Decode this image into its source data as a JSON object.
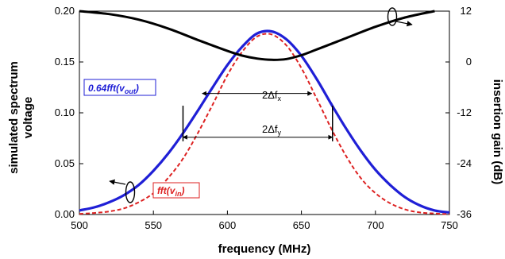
{
  "chart_data": {
    "type": "line",
    "xlabel": "frequency (MHz)",
    "ylabel_left": [
      "simulated spectrum",
      "voltage"
    ],
    "ylabel_right": "insertion gain (dB)",
    "xlim": [
      500,
      750
    ],
    "ylim_left": [
      0,
      0.2
    ],
    "ylim_right": [
      -36,
      12
    ],
    "x_ticks": [
      "500",
      "550",
      "600",
      "650",
      "700",
      "750"
    ],
    "y_left_ticks": [
      "0.00",
      "0.05",
      "0.10",
      "0.15",
      "0.20"
    ],
    "y_right_ticks": [
      "-36",
      "-24",
      "-12",
      "0",
      "12"
    ],
    "grid": false,
    "series": [
      {
        "name": "0.64fft(v_out)",
        "axis": "left",
        "color": "#1f1fd6",
        "style": "solid",
        "x": [
          500,
          510,
          520,
          530,
          540,
          550,
          560,
          570,
          580,
          590,
          600,
          610,
          620,
          630,
          640,
          650,
          660,
          670,
          680,
          690,
          700,
          710,
          720,
          730,
          740,
          750
        ],
        "y": [
          0.004,
          0.007,
          0.012,
          0.019,
          0.029,
          0.043,
          0.06,
          0.08,
          0.102,
          0.125,
          0.147,
          0.165,
          0.178,
          0.18,
          0.172,
          0.156,
          0.134,
          0.109,
          0.085,
          0.063,
          0.044,
          0.029,
          0.017,
          0.009,
          0.004,
          0.002
        ]
      },
      {
        "name": "fft(v_in)",
        "axis": "left",
        "color": "#dd2222",
        "style": "dashed",
        "x": [
          500,
          510,
          520,
          530,
          540,
          550,
          560,
          570,
          580,
          590,
          600,
          610,
          620,
          630,
          640,
          650,
          660,
          670,
          680,
          690,
          700,
          710,
          720,
          730,
          740,
          750
        ],
        "y": [
          0.0006,
          0.0015,
          0.003,
          0.006,
          0.012,
          0.021,
          0.036,
          0.055,
          0.08,
          0.108,
          0.137,
          0.16,
          0.175,
          0.177,
          0.166,
          0.144,
          0.115,
          0.085,
          0.058,
          0.036,
          0.021,
          0.011,
          0.005,
          0.002,
          0.001,
          0.0003
        ]
      },
      {
        "name": "insertion gain",
        "axis": "right",
        "color": "#000000",
        "style": "solid",
        "x": [
          500,
          520,
          540,
          560,
          580,
          600,
          610,
          620,
          630,
          640,
          650,
          660,
          680,
          700,
          720,
          740
        ],
        "y": [
          12,
          11.3,
          10.0,
          7.9,
          5.2,
          2.6,
          1.5,
          0.8,
          0.5,
          0.7,
          1.6,
          2.9,
          5.6,
          8.3,
          10.5,
          12
        ]
      }
    ],
    "annotations": [
      {
        "text": "0.64",
        "italic_text": "fft",
        "paren_open": "(",
        "var": "v",
        "sub": "out",
        "paren_close": ")",
        "color": "#1f1fd6"
      },
      {
        "text": "",
        "italic_text": "fft",
        "paren_open": "(",
        "var": "v",
        "sub": "in",
        "paren_close": ")",
        "color": "#dd2222"
      },
      {
        "text": "2Δf",
        "sub": "x",
        "x_from": 583,
        "x_to": 657,
        "y": 0.119
      },
      {
        "text": "2Δf",
        "sub": "y",
        "x_from": 570,
        "x_to": 671,
        "y": 0.076
      }
    ],
    "markers": {
      "vertical_left": {
        "x": 570,
        "y_from": 0.072,
        "y_to": 0.107
      },
      "vertical_right": {
        "x": 671,
        "y_from": 0.072,
        "y_to": 0.107
      }
    }
  }
}
